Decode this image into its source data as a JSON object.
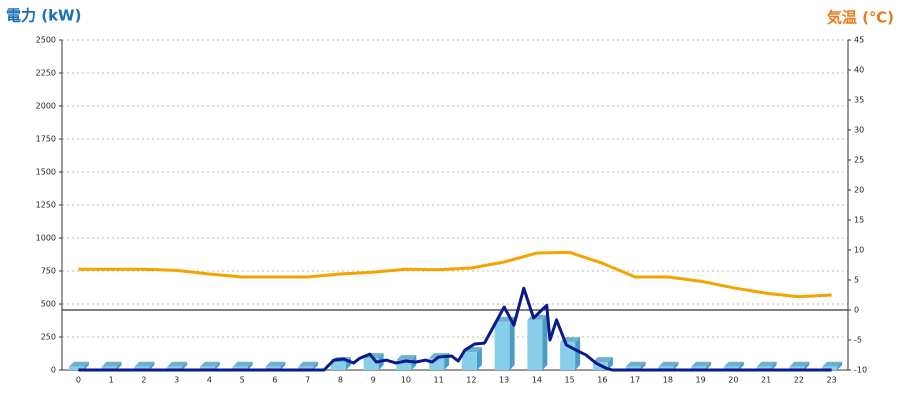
{
  "chart_data": {
    "type": "bar",
    "ylabel": "電力 (kW)",
    "y2label": "気温 (℃)",
    "categories": [
      "0",
      "1",
      "2",
      "3",
      "4",
      "5",
      "6",
      "7",
      "8",
      "9",
      "10",
      "11",
      "12",
      "13",
      "14",
      "15",
      "16",
      "17",
      "18",
      "19",
      "20",
      "21",
      "22",
      "23"
    ],
    "ylim": [
      0,
      2500
    ],
    "yticks": [
      0,
      250,
      500,
      750,
      1000,
      1250,
      1500,
      1750,
      2000,
      2250,
      2500
    ],
    "y2lim": [
      -10,
      45
    ],
    "y2ticks": [
      -10,
      -5,
      0,
      5,
      10,
      15,
      20,
      25,
      30,
      35,
      40,
      45
    ],
    "grid": true,
    "series": [
      {
        "type": "bar",
        "color": "#87ceeb",
        "side_color": "#4a9cc4",
        "values": [
          25,
          25,
          25,
          25,
          25,
          25,
          25,
          25,
          60,
          90,
          75,
          90,
          135,
          365,
          380,
          210,
          60,
          25,
          25,
          25,
          25,
          25,
          25,
          25
        ]
      },
      {
        "type": "line",
        "color": "#0a1a8c",
        "x": [
          0,
          7.5,
          7.8,
          8.1,
          8.4,
          8.6,
          8.9,
          9.1,
          9.4,
          9.7,
          10,
          10.3,
          10.6,
          10.8,
          11,
          11.4,
          11.6,
          11.8,
          12.1,
          12.4,
          12.7,
          13,
          13.3,
          13.6,
          13.9,
          14.3,
          14.4,
          14.6,
          14.9,
          15.2,
          15.5,
          15.8,
          16.1,
          16.3,
          23
        ],
        "values": [
          0,
          0,
          75,
          83,
          53,
          90,
          120,
          60,
          75,
          53,
          68,
          60,
          75,
          60,
          98,
          106,
          68,
          150,
          197,
          204,
          340,
          477,
          340,
          620,
          394,
          490,
          227,
          379,
          190,
          150,
          114,
          53,
          15,
          0,
          0
        ]
      },
      {
        "type": "line",
        "axis": "y2",
        "color": "#f5a300",
        "values": [
          6.8,
          6.8,
          6.8,
          6.6,
          6,
          5.5,
          5.5,
          5.5,
          6,
          6.3,
          6.8,
          6.7,
          7,
          8,
          9.5,
          9.6,
          7.8,
          5.5,
          5.5,
          4.8,
          3.7,
          2.8,
          2.2,
          2.5
        ]
      }
    ]
  }
}
